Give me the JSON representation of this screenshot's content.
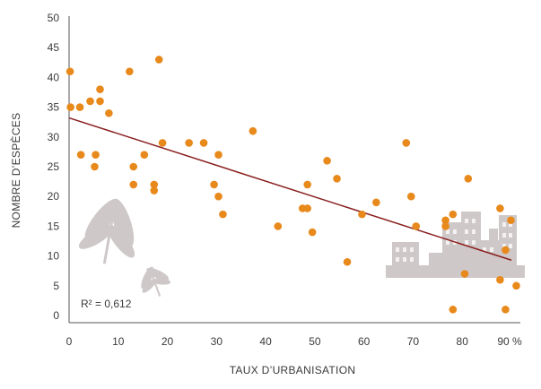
{
  "chart_data": {
    "type": "scatter",
    "xlabel": "TAUX D’URBANISATION",
    "ylabel": "NOMBRE D’ESPÈCES",
    "x_unit": "%",
    "xlim": [
      0,
      90
    ],
    "ylim": [
      0,
      50
    ],
    "xticks": [
      0,
      10,
      20,
      30,
      40,
      50,
      60,
      70,
      80,
      90
    ],
    "yticks": [
      0,
      5,
      10,
      15,
      20,
      25,
      30,
      35,
      40,
      45,
      50
    ],
    "grid": false,
    "annotation": "R² = 0,612",
    "trendline": {
      "x": [
        0,
        90
      ],
      "y": [
        33.2,
        9.3
      ]
    },
    "points_color": "#e8891c",
    "trend_color": "#8a1f1f",
    "decoration_color": "#cfc8c8",
    "decorations": [
      "dragonfly-icon",
      "city-skyline-icon"
    ],
    "points": [
      {
        "x": 0.2,
        "y": 41
      },
      {
        "x": 0.3,
        "y": 35
      },
      {
        "x": 2.2,
        "y": 35
      },
      {
        "x": 4.3,
        "y": 36
      },
      {
        "x": 6.3,
        "y": 38
      },
      {
        "x": 6.3,
        "y": 36
      },
      {
        "x": 8.1,
        "y": 34
      },
      {
        "x": 2.4,
        "y": 27
      },
      {
        "x": 5.4,
        "y": 27
      },
      {
        "x": 5.2,
        "y": 25
      },
      {
        "x": 12.3,
        "y": 41
      },
      {
        "x": 18.3,
        "y": 43
      },
      {
        "x": 13.1,
        "y": 25
      },
      {
        "x": 13.1,
        "y": 22
      },
      {
        "x": 15.3,
        "y": 27
      },
      {
        "x": 17.3,
        "y": 22
      },
      {
        "x": 17.3,
        "y": 21
      },
      {
        "x": 19.0,
        "y": 29
      },
      {
        "x": 24.4,
        "y": 29
      },
      {
        "x": 27.4,
        "y": 29
      },
      {
        "x": 29.5,
        "y": 22
      },
      {
        "x": 30.4,
        "y": 27
      },
      {
        "x": 30.4,
        "y": 20
      },
      {
        "x": 31.3,
        "y": 17
      },
      {
        "x": 37.4,
        "y": 31
      },
      {
        "x": 42.5,
        "y": 15
      },
      {
        "x": 47.5,
        "y": 18
      },
      {
        "x": 48.5,
        "y": 22
      },
      {
        "x": 48.5,
        "y": 18
      },
      {
        "x": 49.5,
        "y": 14
      },
      {
        "x": 52.5,
        "y": 26
      },
      {
        "x": 54.5,
        "y": 23
      },
      {
        "x": 56.6,
        "y": 9
      },
      {
        "x": 59.6,
        "y": 17
      },
      {
        "x": 62.5,
        "y": 19
      },
      {
        "x": 68.6,
        "y": 29
      },
      {
        "x": 69.6,
        "y": 20
      },
      {
        "x": 70.6,
        "y": 15
      },
      {
        "x": 76.6,
        "y": 16
      },
      {
        "x": 76.6,
        "y": 15
      },
      {
        "x": 78.1,
        "y": 17
      },
      {
        "x": 78.1,
        "y": 1
      },
      {
        "x": 80.5,
        "y": 7
      },
      {
        "x": 81.2,
        "y": 23
      },
      {
        "x": 87.7,
        "y": 18
      },
      {
        "x": 87.7,
        "y": 6
      },
      {
        "x": 88.8,
        "y": 11
      },
      {
        "x": 89.9,
        "y": 16
      },
      {
        "x": 88.8,
        "y": 1
      },
      {
        "x": 91.0,
        "y": 5
      }
    ]
  }
}
